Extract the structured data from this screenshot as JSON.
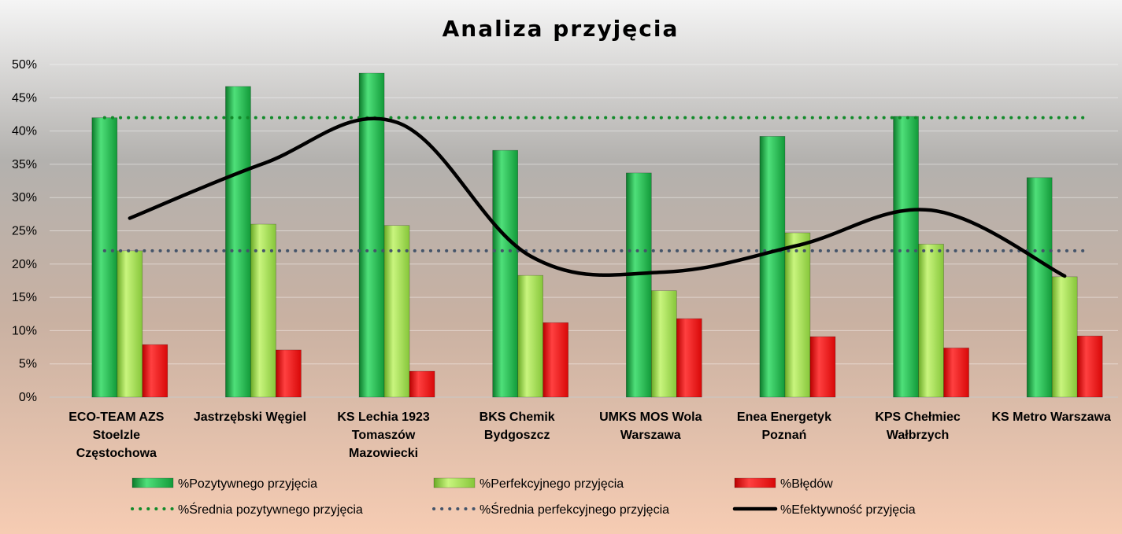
{
  "chart_data": {
    "type": "bar",
    "title": "Analiza przyjęcia",
    "xlabel": "",
    "ylabel": "",
    "ylim": [
      0,
      0.5
    ],
    "y_ticks": [
      {
        "value": 0,
        "label": "0%"
      },
      {
        "value": 0.05,
        "label": "5%"
      },
      {
        "value": 0.1,
        "label": "10%"
      },
      {
        "value": 0.15,
        "label": "15%"
      },
      {
        "value": 0.2,
        "label": "20%"
      },
      {
        "value": 0.25,
        "label": "25%"
      },
      {
        "value": 0.3,
        "label": "30%"
      },
      {
        "value": 0.35,
        "label": "35%"
      },
      {
        "value": 0.4,
        "label": "40%"
      },
      {
        "value": 0.45,
        "label": "45%"
      },
      {
        "value": 0.5,
        "label": "50%"
      }
    ],
    "categories": [
      [
        "ECO-TEAM AZS",
        "Stoelzle",
        "Częstochowa"
      ],
      [
        "Jastrzębski Węgiel"
      ],
      [
        "KS Lechia 1923",
        "Tomaszów",
        "Mazowiecki"
      ],
      [
        "BKS Chemik",
        "Bydgoszcz"
      ],
      [
        "UMKS MOS Wola",
        "Warszawa"
      ],
      [
        "Enea Energetyk",
        "Poznań"
      ],
      [
        "KPS Chełmiec",
        "Wałbrzych"
      ],
      [
        "KS Metro Warszawa"
      ]
    ],
    "series": [
      {
        "name": "%Pozytywnego przyjęcia",
        "kind": "bar",
        "color": "#22b14c",
        "values": [
          0.42,
          0.467,
          0.487,
          0.371,
          0.337,
          0.392,
          0.422,
          0.33
        ]
      },
      {
        "name": "%Perfekcyjnego przyjęcia",
        "kind": "bar",
        "color": "#9fd94a",
        "values": [
          0.22,
          0.26,
          0.258,
          0.183,
          0.16,
          0.247,
          0.23,
          0.181
        ]
      },
      {
        "name": "%Błędów",
        "kind": "bar",
        "color": "#f01010",
        "values": [
          0.079,
          0.071,
          0.039,
          0.112,
          0.118,
          0.091,
          0.074,
          0.092
        ]
      },
      {
        "name": "%Średnia pozytywnego przyjęcia",
        "kind": "dotted-line",
        "color": "#128a2a",
        "values": [
          0.42,
          0.42,
          0.42,
          0.42,
          0.42,
          0.42,
          0.42,
          0.42
        ]
      },
      {
        "name": "%Średnia perfekcyjnego przyjęcia",
        "kind": "dotted-line",
        "color": "#44546a",
        "values": [
          0.22,
          0.22,
          0.22,
          0.22,
          0.22,
          0.22,
          0.22,
          0.22
        ]
      },
      {
        "name": "%Efektywność przyjęcia",
        "kind": "line",
        "color": "#000000",
        "values": [
          0.269,
          0.351,
          0.413,
          0.212,
          0.188,
          0.228,
          0.281,
          0.182
        ]
      }
    ],
    "grid": true,
    "legend_position": "bottom"
  }
}
